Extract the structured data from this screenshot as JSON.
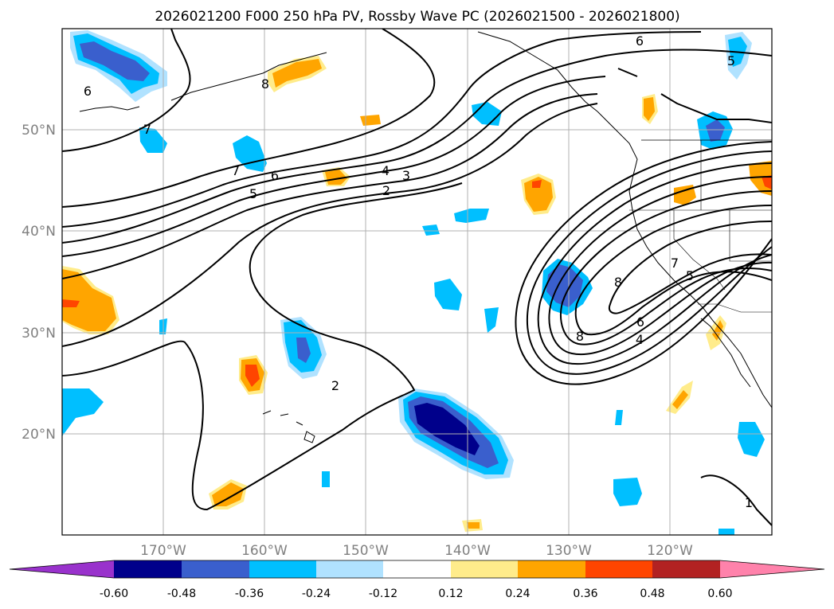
{
  "title": "2026021200 F000 250 hPa PV, Rossby Wave PC (2026021500 - 2026021800)",
  "map": {
    "lat_labels": [
      "50°N",
      "40°N",
      "30°N",
      "20°N"
    ],
    "lon_labels": [
      "170°W",
      "160°W",
      "150°W",
      "140°W",
      "130°W",
      "120°W"
    ],
    "contour_labels": [
      "6",
      "6",
      "8",
      "7",
      "6",
      "5",
      "4",
      "3",
      "2",
      "2",
      "8",
      "7",
      "5",
      "6",
      "4",
      "8",
      "1",
      "5",
      "7"
    ]
  },
  "colorbar": {
    "ticks": [
      "-0.60",
      "-0.48",
      "-0.36",
      "-0.24",
      "-0.12",
      "0.12",
      "0.24",
      "0.36",
      "0.48",
      "0.60"
    ],
    "colors": [
      "#9932cc",
      "#00008b",
      "#3a5fcd",
      "#00bfff",
      "#b0e2ff",
      "#ffffff",
      "#ffec8b",
      "#ffa500",
      "#ff4500",
      "#b22222",
      "#ff82ab"
    ]
  }
}
